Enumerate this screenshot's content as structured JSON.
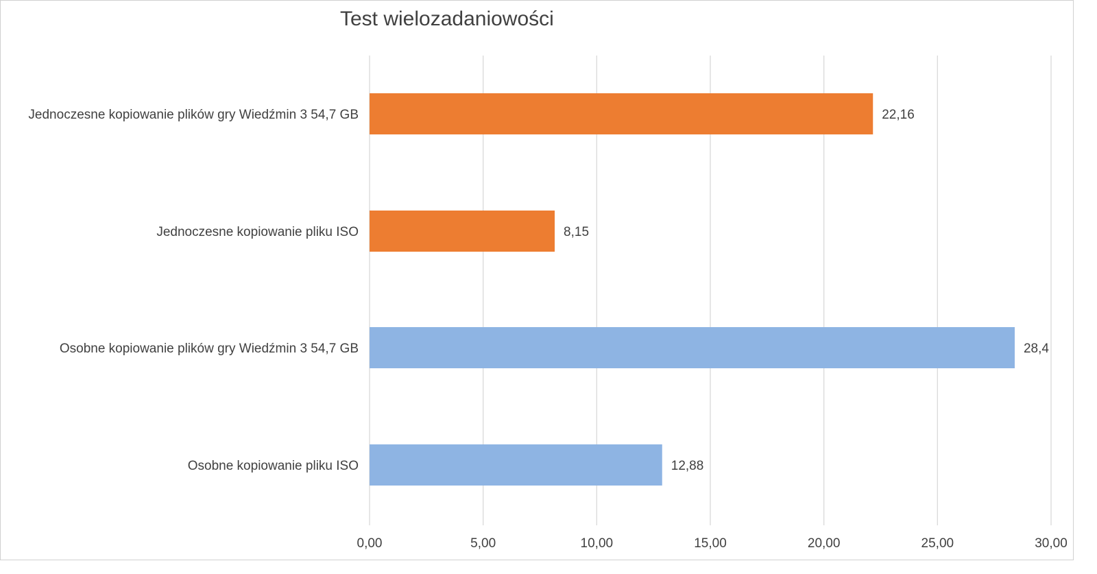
{
  "chart_data": {
    "type": "bar",
    "orientation": "horizontal",
    "title": "Test wielozadaniowości",
    "xlabel": "",
    "ylabel": "",
    "grid": true,
    "legend": "none",
    "xlim": [
      0,
      30
    ],
    "x_ticks": [
      "0,00",
      "5,00",
      "10,00",
      "15,00",
      "20,00",
      "25,00",
      "30,00"
    ],
    "x_tick_values": [
      0,
      5,
      10,
      15,
      20,
      25,
      30
    ],
    "categories": [
      "Jednoczesne kopiowanie plików gry Wiedźmin 3 54,7 GB",
      "Jednoczesne kopiowanie pliku ISO",
      "Osobne kopiowanie plików gry Wiedźmin 3 54,7 GB",
      "Osobne kopiowanie pliku ISO"
    ],
    "values": [
      22.16,
      8.15,
      28.4,
      12.88
    ],
    "data_labels": [
      "22,16",
      "8,15",
      "28,4",
      "12,88"
    ],
    "colors": [
      "#ed7d31",
      "#ed7d31",
      "#8eb4e3",
      "#8eb4e3"
    ],
    "gridline_color": "#d9d9d9"
  }
}
